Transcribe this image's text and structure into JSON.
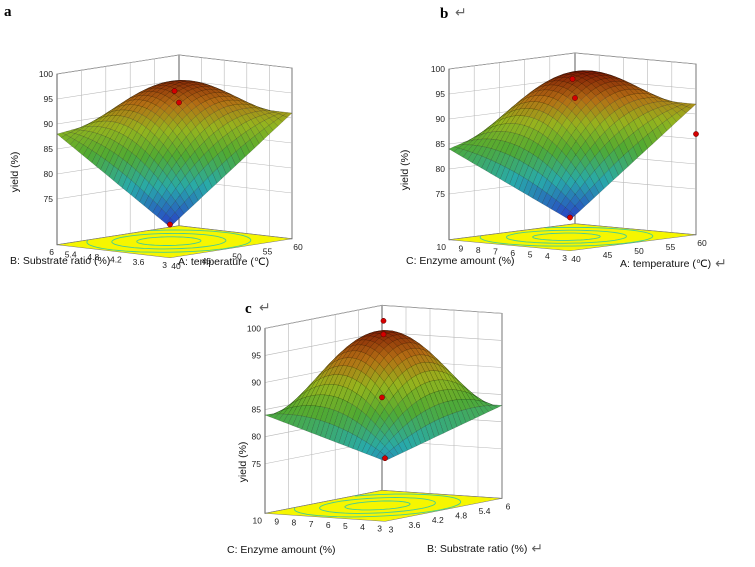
{
  "chart_data": [
    {
      "type": "surface3d",
      "panel": "a",
      "panel_mark": "",
      "zlabel": "yield (%)",
      "z_ticks": [
        "75",
        "80",
        "85",
        "90",
        "95",
        "100"
      ],
      "zlim": [
        72,
        100
      ],
      "x_axis": {
        "label": "A: temperature (℃)",
        "ticks": [
          "40",
          "45",
          "50",
          "55",
          "60"
        ],
        "range": [
          40,
          60
        ]
      },
      "y_axis": {
        "label": "B: Substrate ratio (%)",
        "ticks": [
          "3",
          "3.6",
          "4.2",
          "4.8",
          "5.4",
          "6"
        ],
        "range": [
          3,
          6
        ]
      },
      "model": {
        "center": 96.5,
        "min_corner": 72,
        "corner_x_max": 91,
        "corner_y_max": 88,
        "corner_xy_max": 91
      },
      "design_points": [
        {
          "x": 50,
          "y": 4.5,
          "z": 96
        },
        {
          "x": 60,
          "y": 6,
          "z": 90.5
        },
        {
          "x": 40,
          "y": 3,
          "z": 72.5
        }
      ]
    },
    {
      "type": "surface3d",
      "panel": "b",
      "panel_mark": "↵",
      "zlabel": "yield (%)",
      "z_ticks": [
        "75",
        "80",
        "85",
        "90",
        "95",
        "100"
      ],
      "zlim": [
        72,
        100
      ],
      "x_axis": {
        "label": "A: temperature (℃)",
        "ticks": [
          "40",
          "45",
          "50",
          "55",
          "60"
        ],
        "range": [
          40,
          60
        ],
        "mark": "↵"
      },
      "y_axis": {
        "label": "C: Enzyme amount (%)",
        "ticks": [
          "3",
          "4",
          "5",
          "6",
          "7",
          "8",
          "9",
          "10"
        ],
        "range": [
          3,
          10
        ]
      },
      "model": {
        "center": 97.5,
        "min_corner": 72,
        "corner_x_max": 92,
        "corner_y_max": 84,
        "corner_xy_max": 92
      },
      "design_points": [
        {
          "x": 50,
          "y": 6.5,
          "z": 97.5
        },
        {
          "x": 60,
          "y": 10,
          "z": 91
        },
        {
          "x": 40,
          "y": 3,
          "z": 72.5
        },
        {
          "x": 60,
          "y": 3,
          "z": 86
        }
      ]
    },
    {
      "type": "surface3d",
      "panel": "c",
      "panel_mark": "↵",
      "zlabel": "yield (%)",
      "z_ticks": [
        "75",
        "80",
        "85",
        "90",
        "95",
        "100"
      ],
      "zlim": [
        72,
        100
      ],
      "x_axis": {
        "label": "B: Substrate ratio (%)",
        "ticks": [
          "3",
          "3.6",
          "4.2",
          "4.8",
          "5.4",
          "6"
        ],
        "range": [
          3,
          6
        ],
        "mark": "↵"
      },
      "y_axis": {
        "label": "C: Enzyme amount (%)",
        "ticks": [
          "3",
          "4",
          "5",
          "6",
          "7",
          "8",
          "9",
          "10"
        ],
        "range": [
          3,
          10
        ]
      },
      "model": {
        "center": 98,
        "min_corner": 77,
        "corner_x_max": 83,
        "corner_y_max": 84,
        "corner_xy_max": 83
      },
      "design_points": [
        {
          "x": 4.5,
          "y": 6.5,
          "z": 100
        },
        {
          "x": 4.5,
          "y": 6.5,
          "z": 97.5
        },
        {
          "x": 3,
          "y": 3,
          "z": 77.5
        },
        {
          "x": 6,
          "y": 10,
          "z": 83
        }
      ]
    }
  ]
}
